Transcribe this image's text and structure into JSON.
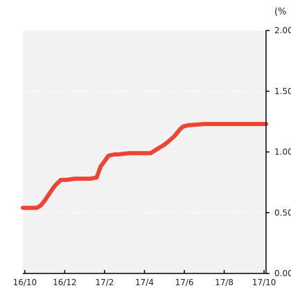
{
  "chart_data": {
    "type": "line",
    "title": "",
    "xlabel": "",
    "ylabel": "",
    "unit_label": "(%",
    "x_tick_labels": [
      "16/10",
      "16/12",
      "17/2",
      "17/4",
      "17/6",
      "17/8",
      "17/10"
    ],
    "x_tick_months": [
      0,
      2,
      4,
      6,
      8,
      10,
      12
    ],
    "x_range_months": [
      -0.1,
      12.1
    ],
    "y_tick_labels": [
      "2.00",
      "1.50",
      "1.00",
      "0.50",
      "0.00"
    ],
    "y_tick_values": [
      2.0,
      1.5,
      1.0,
      0.5,
      0.0
    ],
    "ylim": [
      0,
      2.0
    ],
    "grid": "horizontal dashed",
    "y_axis_position": "right",
    "colors": {
      "line": "#ee4433",
      "plot_background": "#f2f2f2",
      "grid": "#ffffff",
      "axis": "#000000"
    },
    "series": [
      {
        "x": [
          -0.1,
          0.6,
          0.8,
          1.0,
          1.2,
          1.5,
          1.8,
          2.1,
          2.5,
          3.0,
          3.3,
          3.6,
          3.8,
          4.2,
          4.5,
          4.7,
          5.2,
          5.8,
          6.3,
          6.7,
          7.0,
          7.3,
          7.5,
          7.8,
          7.95,
          8.2,
          9.0,
          9.5,
          10.0,
          12.1
        ],
        "y": [
          0.54,
          0.54,
          0.56,
          0.6,
          0.65,
          0.72,
          0.77,
          0.77,
          0.78,
          0.78,
          0.78,
          0.79,
          0.88,
          0.97,
          0.98,
          0.98,
          0.99,
          0.99,
          0.99,
          1.03,
          1.06,
          1.1,
          1.13,
          1.19,
          1.21,
          1.22,
          1.23,
          1.23,
          1.23,
          1.23
        ]
      }
    ]
  }
}
